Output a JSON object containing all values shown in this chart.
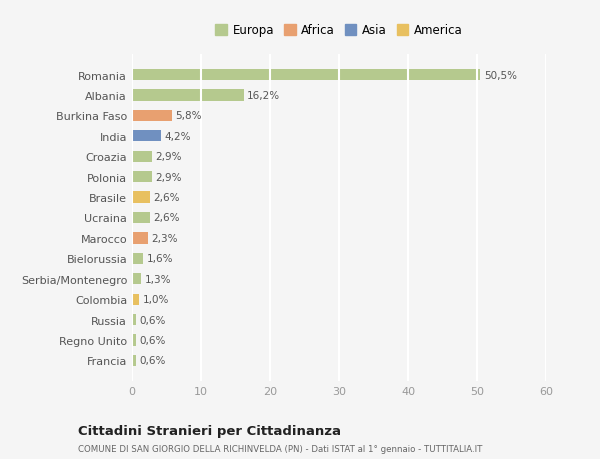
{
  "categories": [
    "Francia",
    "Regno Unito",
    "Russia",
    "Colombia",
    "Serbia/Montenegro",
    "Bielorussia",
    "Marocco",
    "Ucraina",
    "Brasile",
    "Polonia",
    "Croazia",
    "India",
    "Burkina Faso",
    "Albania",
    "Romania"
  ],
  "values": [
    0.6,
    0.6,
    0.6,
    1.0,
    1.3,
    1.6,
    2.3,
    2.6,
    2.6,
    2.9,
    2.9,
    4.2,
    5.8,
    16.2,
    50.5
  ],
  "labels": [
    "0,6%",
    "0,6%",
    "0,6%",
    "1,0%",
    "1,3%",
    "1,6%",
    "2,3%",
    "2,6%",
    "2,6%",
    "2,9%",
    "2,9%",
    "4,2%",
    "5,8%",
    "16,2%",
    "50,5%"
  ],
  "colors": [
    "#b5c98e",
    "#b5c98e",
    "#b5c98e",
    "#e8c060",
    "#b5c98e",
    "#b5c98e",
    "#e8a070",
    "#b5c98e",
    "#e8c060",
    "#b5c98e",
    "#b5c98e",
    "#7090c0",
    "#e8a070",
    "#b5c98e",
    "#b5c98e"
  ],
  "legend_labels": [
    "Europa",
    "Africa",
    "Asia",
    "America"
  ],
  "legend_colors": [
    "#b5c98e",
    "#e8a070",
    "#7090c0",
    "#e8c060"
  ],
  "title": "Cittadini Stranieri per Cittadinanza",
  "subtitle": "COMUNE DI SAN GIORGIO DELLA RICHINVELDA (PN) - Dati ISTAT al 1° gennaio - TUTTITALIA.IT",
  "xlim": [
    0,
    60
  ],
  "xticks": [
    0,
    10,
    20,
    30,
    40,
    50,
    60
  ],
  "background_color": "#f5f5f5",
  "grid_color": "#ffffff",
  "bar_height": 0.55
}
